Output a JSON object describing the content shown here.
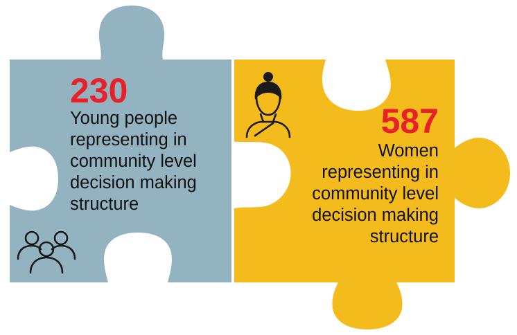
{
  "colors": {
    "young_piece": "#93b3c0",
    "women_piece": "#f3bb1c",
    "accent_number": "#e8202a",
    "text": "#111111"
  },
  "young_people": {
    "number": "230",
    "description_lines": [
      "Young people",
      "representing in",
      "community level",
      "decision making",
      "structure"
    ],
    "icon": "group-of-people-icon"
  },
  "women": {
    "number": "587",
    "description_lines": [
      "Women",
      "representing in",
      "community level",
      "decision making",
      "structure"
    ],
    "icon": "woman-icon"
  }
}
